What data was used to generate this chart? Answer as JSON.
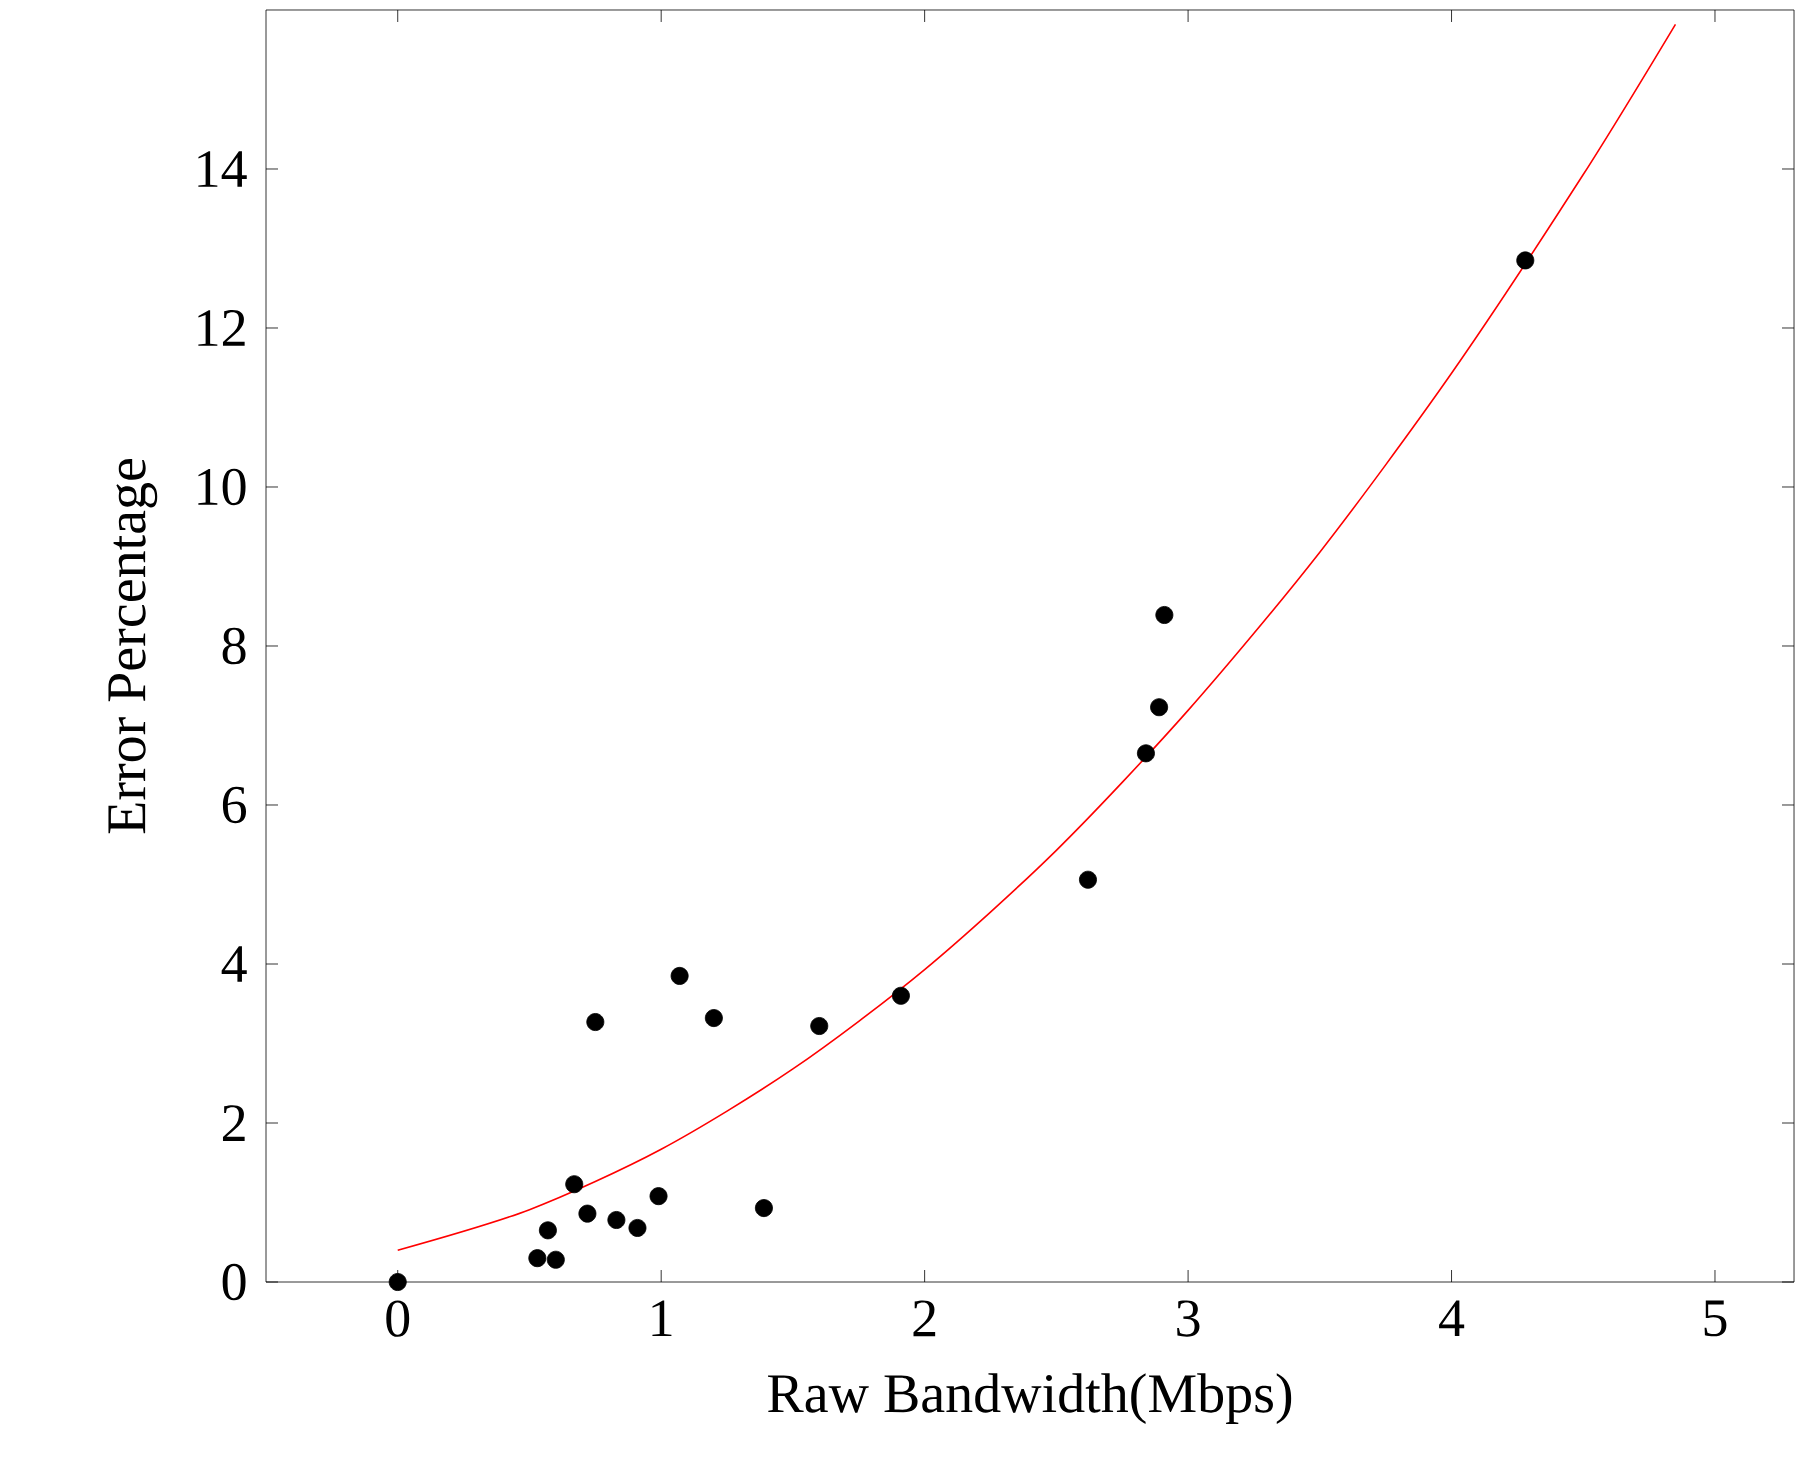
{
  "chart_data": {
    "type": "scatter",
    "xlabel": "Raw Bandwidth(Mbps)",
    "ylabel": "Error Percentage",
    "xlim": [
      -0.5,
      5.3
    ],
    "ylim": [
      0,
      16
    ],
    "xticks": [
      0,
      1,
      2,
      3,
      4,
      5
    ],
    "yticks": [
      0,
      2,
      4,
      6,
      8,
      10,
      12,
      14
    ],
    "grid": false,
    "series": [
      {
        "color": "#000000",
        "marker": "circle",
        "x": [
          0,
          0.53,
          0.57,
          0.6,
          0.67,
          0.72,
          0.75,
          0.83,
          0.91,
          0.99,
          1.07,
          1.2,
          1.39,
          1.6,
          1.91,
          2.62,
          2.84,
          2.89,
          2.91,
          4.28
        ],
        "values": [
          0,
          0.3,
          0.65,
          0.28,
          1.23,
          0.86,
          3.27,
          0.78,
          0.68,
          1.08,
          3.85,
          3.32,
          0.93,
          3.22,
          3.6,
          5.06,
          6.65,
          7.23,
          8.39,
          12.85
        ]
      },
      {
        "type": "line",
        "color": "#ff0000",
        "line_style": "solid",
        "x": [
          0,
          0.5,
          1,
          1.5,
          2,
          2.5,
          3,
          3.5,
          4,
          4.5,
          4.85
        ],
        "values": [
          0.4,
          0.91,
          1.67,
          2.68,
          3.93,
          5.43,
          7.19,
          9.18,
          11.43,
          13.93,
          15.82
        ]
      }
    ]
  }
}
